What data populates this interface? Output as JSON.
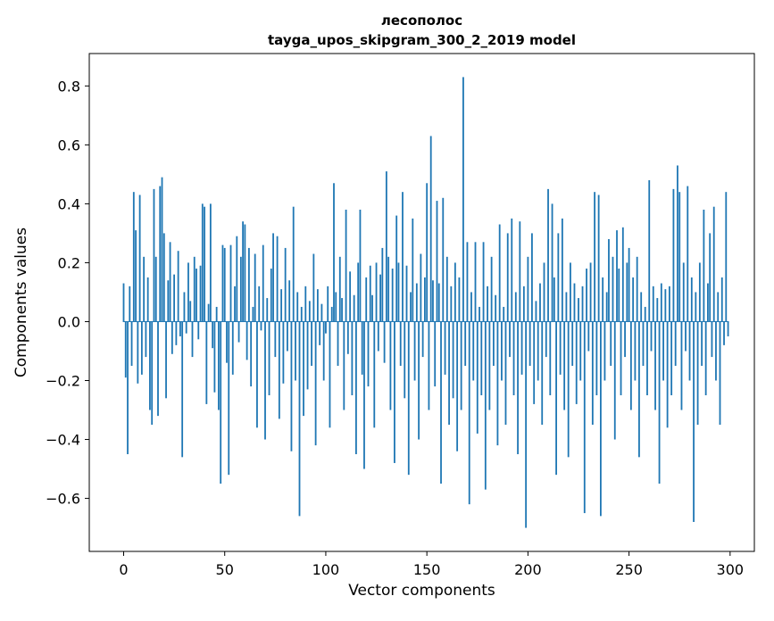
{
  "figure": {
    "title_line1": "лесополос",
    "title_line2": "tayga_upos_skipgram_300_2_2019 model",
    "xlabel": "Vector components",
    "ylabel": "Components values"
  },
  "chart_data": {
    "type": "bar",
    "title": "лесополос — tayga_upos_skipgram_300_2_2019 model",
    "xlabel": "Vector components",
    "ylabel": "Components values",
    "bar_color": "#1f77b4",
    "grid": false,
    "legend": "none",
    "xlim": [
      -17,
      312
    ],
    "ylim": [
      -0.78,
      0.91
    ],
    "xticks": [
      0,
      50,
      100,
      150,
      200,
      250,
      300
    ],
    "yticks": [
      -0.6,
      -0.4,
      -0.2,
      0.0,
      0.2,
      0.4,
      0.6,
      0.8
    ],
    "n_components": 300,
    "values": [
      0.13,
      -0.19,
      -0.45,
      0.12,
      -0.15,
      0.44,
      0.31,
      -0.21,
      0.43,
      -0.18,
      0.22,
      -0.12,
      0.15,
      -0.3,
      -0.35,
      0.45,
      0.22,
      -0.32,
      0.46,
      0.49,
      0.3,
      -0.26,
      0.14,
      0.27,
      -0.11,
      0.16,
      -0.08,
      0.24,
      -0.05,
      -0.46,
      0.1,
      -0.04,
      0.2,
      0.07,
      -0.12,
      0.22,
      0.18,
      -0.06,
      0.19,
      0.4,
      0.39,
      -0.28,
      0.06,
      0.4,
      -0.09,
      -0.24,
      0.05,
      -0.3,
      -0.55,
      0.26,
      0.25,
      -0.14,
      -0.52,
      0.26,
      -0.18,
      0.12,
      0.29,
      -0.07,
      0.22,
      0.34,
      0.33,
      -0.13,
      0.25,
      -0.22,
      0.05,
      0.23,
      -0.36,
      0.12,
      -0.03,
      0.26,
      -0.4,
      0.08,
      -0.25,
      0.18,
      0.3,
      -0.12,
      0.29,
      -0.33,
      0.11,
      -0.21,
      0.25,
      -0.1,
      0.14,
      -0.44,
      0.39,
      -0.2,
      0.1,
      -0.66,
      0.05,
      -0.32,
      0.12,
      -0.23,
      0.07,
      -0.15,
      0.23,
      -0.42,
      0.11,
      -0.08,
      0.06,
      -0.2,
      -0.04,
      0.12,
      -0.36,
      0.05,
      0.47,
      0.1,
      -0.15,
      0.22,
      0.08,
      -0.3,
      0.38,
      -0.11,
      0.17,
      -0.25,
      0.09,
      -0.45,
      0.2,
      0.38,
      -0.18,
      -0.5,
      0.15,
      -0.22,
      0.19,
      0.09,
      -0.36,
      0.2,
      -0.1,
      0.16,
      0.25,
      -0.14,
      0.51,
      0.22,
      -0.3,
      0.18,
      -0.48,
      0.36,
      0.2,
      -0.15,
      0.44,
      -0.26,
      0.19,
      -0.52,
      0.1,
      0.35,
      -0.2,
      0.13,
      -0.4,
      0.23,
      -0.12,
      0.15,
      0.47,
      -0.3,
      0.63,
      0.14,
      -0.22,
      0.41,
      0.13,
      -0.55,
      0.42,
      -0.18,
      0.22,
      -0.35,
      0.12,
      -0.26,
      0.2,
      -0.44,
      0.15,
      -0.3,
      0.83,
      -0.15,
      0.27,
      -0.62,
      0.1,
      -0.2,
      0.27,
      -0.38,
      0.05,
      -0.25,
      0.27,
      -0.57,
      0.12,
      -0.3,
      0.22,
      -0.15,
      0.09,
      -0.42,
      0.33,
      -0.2,
      0.05,
      -0.35,
      0.3,
      -0.12,
      0.35,
      -0.25,
      0.1,
      -0.45,
      0.34,
      -0.18,
      0.12,
      -0.7,
      0.22,
      -0.15,
      0.3,
      -0.28,
      0.07,
      -0.2,
      0.13,
      -0.35,
      0.2,
      -0.12,
      0.45,
      -0.25,
      0.4,
      0.15,
      -0.52,
      0.3,
      -0.18,
      0.35,
      -0.3,
      0.1,
      -0.46,
      0.2,
      -0.15,
      0.13,
      -0.28,
      0.08,
      -0.2,
      0.12,
      -0.65,
      0.18,
      -0.1,
      0.2,
      -0.35,
      0.44,
      -0.25,
      0.43,
      -0.66,
      0.15,
      -0.2,
      0.1,
      0.28,
      -0.15,
      0.22,
      -0.4,
      0.31,
      0.18,
      -0.25,
      0.32,
      -0.12,
      0.2,
      0.25,
      -0.3,
      0.15,
      -0.2,
      0.22,
      -0.46,
      0.1,
      -0.15,
      0.05,
      -0.25,
      0.48,
      -0.1,
      0.12,
      -0.3,
      0.08,
      -0.55,
      0.13,
      -0.2,
      0.11,
      -0.36,
      0.12,
      -0.25,
      0.45,
      -0.15,
      0.53,
      0.44,
      -0.3,
      0.2,
      -0.1,
      0.46,
      -0.2,
      0.15,
      -0.68,
      0.1,
      -0.35,
      0.2,
      -0.15,
      0.38,
      -0.25,
      0.13,
      0.3,
      -0.12,
      0.39,
      -0.2,
      0.1,
      -0.35,
      0.15,
      -0.08,
      0.44,
      -0.05
    ]
  }
}
